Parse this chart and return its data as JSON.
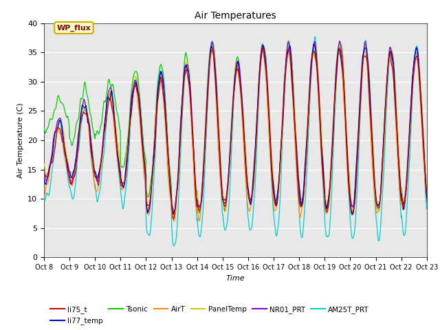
{
  "title": "Air Temperatures",
  "xlabel": "Time",
  "ylabel": "Air Temperature (C)",
  "ylim": [
    0,
    40
  ],
  "yticks": [
    0,
    5,
    10,
    15,
    20,
    25,
    30,
    35,
    40
  ],
  "x_labels": [
    "Oct 8",
    "Oct 9",
    "Oct 10",
    "Oct 11",
    "Oct 12",
    "Oct 13",
    "Oct 14",
    "Oct 15",
    "Oct 16",
    "Oct 17",
    "Oct 18",
    "Oct 19",
    "Oct 20",
    "Oct 21",
    "Oct 22",
    "Oct 23"
  ],
  "series_colors": {
    "li75_t": "#cc0000",
    "li77_temp": "#0000cc",
    "Tsonic": "#00cc00",
    "AirT": "#ff8800",
    "PanelTemp": "#cccc00",
    "NR01_PRT": "#8800cc",
    "AM25T_PRT": "#00cccc"
  },
  "legend_box_color": "#ffffcc",
  "legend_box_edge": "#ccaa00",
  "wp_flux_text_color": "#880000",
  "plot_background": "#e8e8e8",
  "num_days": 15,
  "points_per_day": 96,
  "day_mins_base": [
    13,
    13,
    13,
    12,
    8,
    7,
    8,
    9,
    9,
    9,
    9,
    8,
    8,
    8,
    9,
    9
  ],
  "day_maxs_base": [
    22,
    25,
    27,
    29,
    30,
    32,
    35,
    32,
    35,
    35,
    35,
    35,
    35,
    34,
    34,
    34
  ],
  "tsonic_extra_min": [
    9,
    7,
    8,
    3,
    2,
    0,
    0,
    0,
    0,
    0,
    0,
    0,
    0,
    0,
    0,
    0
  ],
  "tsonic_extra_max": [
    5,
    4,
    3,
    3,
    3,
    2,
    2,
    2,
    1,
    1,
    1,
    1,
    1,
    1,
    1,
    1
  ]
}
